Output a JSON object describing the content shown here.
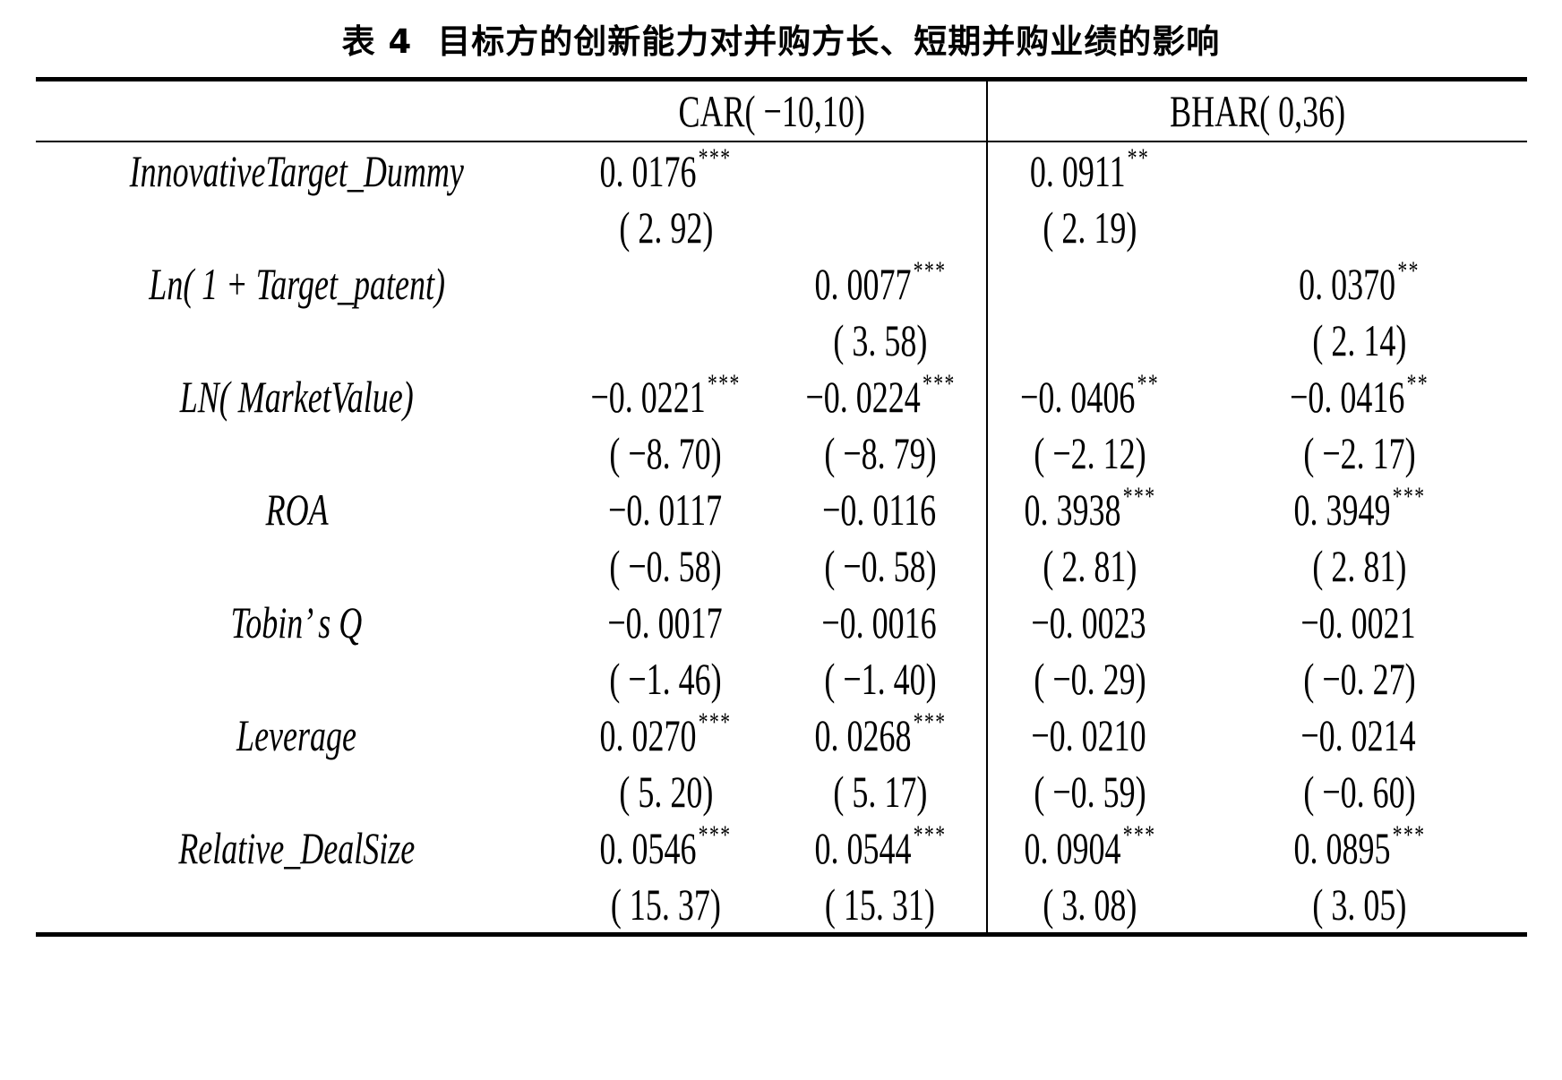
{
  "title": {
    "prefix": "表 4",
    "text": "目标方的创新能力对并购方长、短期并购业绩的影响"
  },
  "colors": {
    "text": "#000000",
    "background": "#ffffff",
    "rules": "#000000"
  },
  "table": {
    "col_groups": [
      {
        "label": "CAR( −10,10)"
      },
      {
        "label": "BHAR( 0,36)"
      }
    ],
    "rows": [
      {
        "variable": "InnovativeTarget_Dummy",
        "cells": [
          {
            "coef": "0. 0176",
            "stars": "***",
            "t": "( 2. 92)"
          },
          {
            "coef": "",
            "stars": "",
            "t": ""
          },
          {
            "coef": "0. 0911",
            "stars": "**",
            "t": "( 2. 19)"
          },
          {
            "coef": "",
            "stars": "",
            "t": ""
          }
        ]
      },
      {
        "variable": "Ln( 1 + Target_patent)",
        "cells": [
          {
            "coef": "",
            "stars": "",
            "t": ""
          },
          {
            "coef": "0. 0077",
            "stars": "***",
            "t": "( 3. 58)"
          },
          {
            "coef": "",
            "stars": "",
            "t": ""
          },
          {
            "coef": "0. 0370",
            "stars": "**",
            "t": "( 2. 14)"
          }
        ]
      },
      {
        "variable": "LN( MarketValue)",
        "cells": [
          {
            "coef": "−0. 0221",
            "stars": "***",
            "t": "( −8. 70)"
          },
          {
            "coef": "−0. 0224",
            "stars": "***",
            "t": "( −8. 79)"
          },
          {
            "coef": "−0. 0406",
            "stars": "**",
            "t": "( −2. 12)"
          },
          {
            "coef": "−0. 0416",
            "stars": "**",
            "t": "( −2. 17)"
          }
        ]
      },
      {
        "variable": "ROA",
        "cells": [
          {
            "coef": "−0. 0117",
            "stars": "",
            "t": "( −0. 58)"
          },
          {
            "coef": "−0. 0116",
            "stars": "",
            "t": "( −0. 58)"
          },
          {
            "coef": "0. 3938",
            "stars": "***",
            "t": "( 2. 81)"
          },
          {
            "coef": "0. 3949",
            "stars": "***",
            "t": "( 2. 81)"
          }
        ]
      },
      {
        "variable": "Tobin’ s Q",
        "cells": [
          {
            "coef": "−0. 0017",
            "stars": "",
            "t": "( −1. 46)"
          },
          {
            "coef": "−0. 0016",
            "stars": "",
            "t": "( −1. 40)"
          },
          {
            "coef": "−0. 0023",
            "stars": "",
            "t": "( −0. 29)"
          },
          {
            "coef": "−0. 0021",
            "stars": "",
            "t": "( −0. 27)"
          }
        ]
      },
      {
        "variable": "Leverage",
        "cells": [
          {
            "coef": "0. 0270",
            "stars": "***",
            "t": "( 5. 20)"
          },
          {
            "coef": "0. 0268",
            "stars": "***",
            "t": "( 5. 17)"
          },
          {
            "coef": "−0. 0210",
            "stars": "",
            "t": "( −0. 59)"
          },
          {
            "coef": "−0. 0214",
            "stars": "",
            "t": "( −0. 60)"
          }
        ]
      },
      {
        "variable": "Relative_DealSize",
        "cells": [
          {
            "coef": "0. 0546",
            "stars": "***",
            "t": "( 15. 37)"
          },
          {
            "coef": "0. 0544",
            "stars": "***",
            "t": "( 15. 31)"
          },
          {
            "coef": "0. 0904",
            "stars": "***",
            "t": "( 3. 08)"
          },
          {
            "coef": "0. 0895",
            "stars": "***",
            "t": "( 3. 05)"
          }
        ]
      }
    ]
  }
}
